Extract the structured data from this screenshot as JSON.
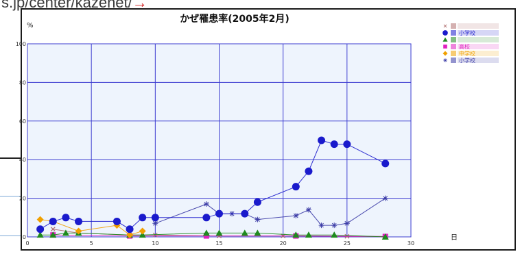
{
  "page": {
    "url_fragment": "s.jp/center/kazenet/",
    "url_arrow": "→"
  },
  "chart_data": {
    "type": "line",
    "title": "かぜ罹患率(2005年2月)",
    "ylabel": "%",
    "xlabel": "日",
    "xlim": [
      0,
      30
    ],
    "ylim": [
      0,
      100
    ],
    "x_ticks": [
      "0",
      "5",
      "10",
      "15",
      "20",
      "25",
      "30"
    ],
    "y_ticks": [
      "0",
      "20",
      "40",
      "60",
      "80",
      "100"
    ],
    "grid": true,
    "legend_position": "right",
    "series": [
      {
        "name": "",
        "marker": "x",
        "color": "#b07070",
        "points": [
          [
            2,
            4
          ],
          [
            4,
            2
          ],
          [
            8,
            1
          ],
          [
            10,
            1
          ],
          [
            15,
            0.5
          ],
          [
            20,
            0.5
          ],
          [
            25,
            0.3
          ],
          [
            28,
            0.2
          ]
        ]
      },
      {
        "name": "小学校",
        "marker": "circle",
        "color": "#1a1acc",
        "points": [
          [
            1,
            4
          ],
          [
            2,
            8
          ],
          [
            3,
            10
          ],
          [
            4,
            8
          ],
          [
            7,
            8
          ],
          [
            8,
            4
          ],
          [
            9,
            10
          ],
          [
            10,
            10
          ],
          [
            14,
            10
          ],
          [
            15,
            12
          ],
          [
            17,
            12
          ],
          [
            18,
            18
          ],
          [
            21,
            26
          ],
          [
            22,
            34
          ],
          [
            23,
            50
          ],
          [
            24,
            48
          ],
          [
            25,
            48
          ],
          [
            28,
            38
          ]
        ]
      },
      {
        "name": "",
        "marker": "triangle",
        "color": "#1f8a1f",
        "points": [
          [
            1,
            1
          ],
          [
            2,
            1
          ],
          [
            3,
            2
          ],
          [
            4,
            2
          ],
          [
            8,
            1
          ],
          [
            9,
            1
          ],
          [
            14,
            2
          ],
          [
            15,
            2
          ],
          [
            17,
            2
          ],
          [
            18,
            2
          ],
          [
            21,
            1
          ],
          [
            22,
            1
          ],
          [
            24,
            1
          ],
          [
            28,
            0
          ]
        ]
      },
      {
        "name": "高校",
        "marker": "square",
        "color": "#e020c0",
        "points": [
          [
            2,
            1
          ],
          [
            8,
            0.5
          ],
          [
            14,
            0.5
          ],
          [
            21,
            0.5
          ],
          [
            28,
            0.2
          ]
        ]
      },
      {
        "name": "中学校",
        "marker": "diamond",
        "color": "#f0a000",
        "points": [
          [
            1,
            9
          ],
          [
            2,
            8
          ],
          [
            4,
            3
          ],
          [
            7,
            6
          ],
          [
            8,
            1
          ],
          [
            9,
            3
          ]
        ]
      },
      {
        "name": "小学校",
        "marker": "asterisk",
        "color": "#3b3ba6",
        "points": [
          [
            10,
            7
          ],
          [
            14,
            17
          ],
          [
            15,
            12
          ],
          [
            16,
            12
          ],
          [
            17,
            12
          ],
          [
            18,
            9
          ],
          [
            21,
            11
          ],
          [
            22,
            14
          ],
          [
            23,
            6
          ],
          [
            24,
            6
          ],
          [
            25,
            7
          ],
          [
            28,
            20
          ]
        ]
      }
    ]
  }
}
